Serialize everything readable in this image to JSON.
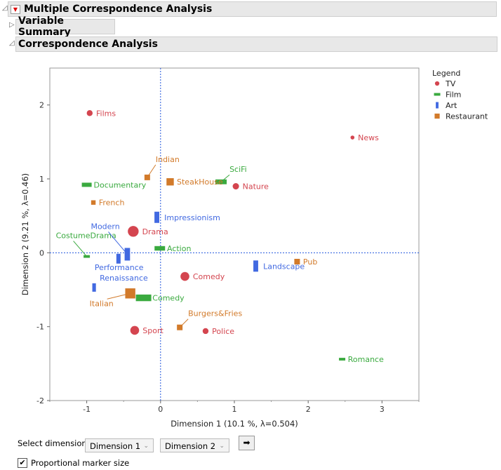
{
  "header": {
    "title": "Multiple Correspondence Analysis",
    "variable_summary": "Variable Summary",
    "correspondence_analysis": "Correspondence Analysis"
  },
  "colors": {
    "TV": "#d4454f",
    "Film": "#3aaa3f",
    "Art": "#4169e1",
    "Restaurant": "#d27a2a"
  },
  "chart_data": {
    "type": "scatter",
    "xlabel": "Dimension 1  (10.1 %, λ=0.504)",
    "ylabel": "Dimension 2  (9.21 %, λ=0.46)",
    "xlim": [
      -1.5,
      3.5
    ],
    "ylim": [
      -2,
      2.5
    ],
    "xticks": [
      "-1",
      "0",
      "1",
      "2",
      "3"
    ],
    "yticks": [
      "-2",
      "-1",
      "0",
      "1",
      "2"
    ],
    "reference_lines": "dotted at x=0 and y=0",
    "legend": {
      "title": "Legend",
      "position": "right",
      "entries": [
        "TV",
        "Film",
        "Art",
        "Restaurant"
      ]
    },
    "points": [
      {
        "label": "Films",
        "group": "TV",
        "x": -0.96,
        "y": 1.89,
        "size": 1.2
      },
      {
        "label": "News",
        "group": "TV",
        "x": 2.6,
        "y": 1.56,
        "size": 0.8
      },
      {
        "label": "Nature",
        "group": "TV",
        "x": 1.02,
        "y": 0.9,
        "size": 1.3
      },
      {
        "label": "Drama",
        "group": "TV",
        "x": -0.37,
        "y": 0.29,
        "size": 2.2
      },
      {
        "label": "Comedy",
        "group": "TV",
        "x": 0.33,
        "y": -0.32,
        "size": 1.8
      },
      {
        "label": "Sport",
        "group": "TV",
        "x": -0.35,
        "y": -1.05,
        "size": 1.8
      },
      {
        "label": "Police",
        "group": "TV",
        "x": 0.61,
        "y": -1.06,
        "size": 1.2
      },
      {
        "label": "SciFi",
        "group": "Film",
        "x": 0.82,
        "y": 0.96,
        "size": 1.6
      },
      {
        "label": "Documentary",
        "group": "Film",
        "x": -1.0,
        "y": 0.92,
        "size": 1.4
      },
      {
        "label": "CostumeDrama",
        "group": "Film",
        "x": -1.0,
        "y": -0.05,
        "size": 0.9
      },
      {
        "label": "Action",
        "group": "Film",
        "x": -0.01,
        "y": 0.06,
        "size": 1.5
      },
      {
        "label": "Comedy",
        "group": "Film",
        "x": -0.23,
        "y": -0.61,
        "size": 2.2
      },
      {
        "label": "Romance",
        "group": "Film",
        "x": 2.46,
        "y": -1.44,
        "size": 0.9
      },
      {
        "label": "Impressionism",
        "group": "Art",
        "x": -0.05,
        "y": 0.48,
        "size": 1.6
      },
      {
        "label": "Modern",
        "group": "Art",
        "x": -0.45,
        "y": -0.02,
        "size": 1.8
      },
      {
        "label": "Performance",
        "group": "Art",
        "x": -0.57,
        "y": -0.08,
        "size": 1.4
      },
      {
        "label": "Landscape",
        "group": "Art",
        "x": 1.29,
        "y": -0.18,
        "size": 1.6
      },
      {
        "label": "Renaissance",
        "group": "Art",
        "x": -0.9,
        "y": -0.47,
        "size": 1.2
      },
      {
        "label": "Indian",
        "group": "Restaurant",
        "x": -0.18,
        "y": 1.02,
        "size": 1.0
      },
      {
        "label": "SteakHouse",
        "group": "Restaurant",
        "x": 0.13,
        "y": 0.96,
        "size": 1.3
      },
      {
        "label": "French",
        "group": "Restaurant",
        "x": -0.91,
        "y": 0.68,
        "size": 0.8
      },
      {
        "label": "Pub",
        "group": "Restaurant",
        "x": 1.85,
        "y": -0.12,
        "size": 1.0
      },
      {
        "label": "Italian",
        "group": "Restaurant",
        "x": -0.41,
        "y": -0.55,
        "size": 1.8
      },
      {
        "label": "Burgers&Fries",
        "group": "Restaurant",
        "x": 0.26,
        "y": -1.01,
        "size": 1.0
      }
    ]
  },
  "controls": {
    "select_label": "Select dimension",
    "dim_x": "Dimension 1",
    "dim_y": "Dimension 2",
    "checkbox_label": "Proportional marker size",
    "checkbox_checked": true
  }
}
